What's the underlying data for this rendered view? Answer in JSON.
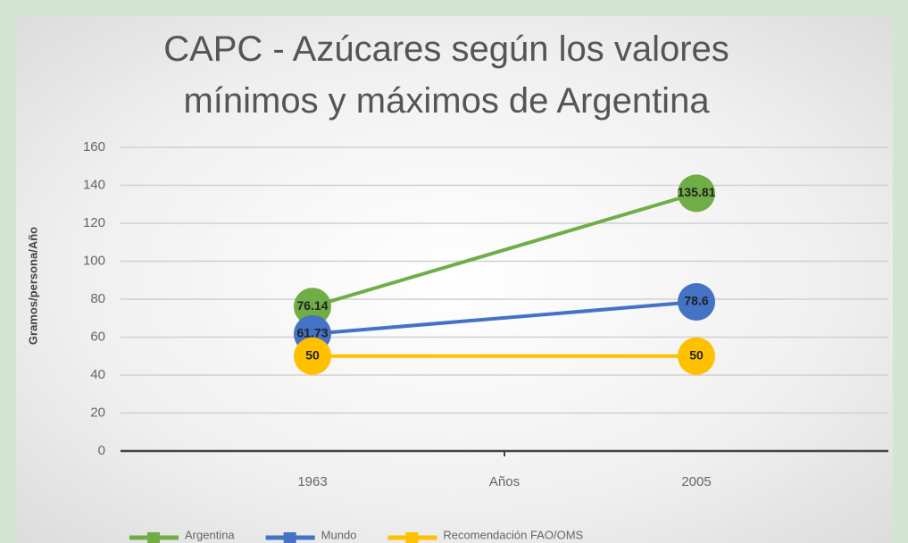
{
  "chart_data": {
    "type": "line",
    "title": "CAPC - Azúcares según los valores mínimos y máximos de Argentina",
    "x_label": "Años",
    "y_label": "Gramos/persona/Año",
    "categories": [
      "1963",
      "2005"
    ],
    "series": [
      {
        "name": "Argentina",
        "color": "#70ad47",
        "values": [
          76.14,
          135.81
        ]
      },
      {
        "name": "Mundo",
        "color": "#4472c4",
        "values": [
          61.73,
          78.6
        ]
      },
      {
        "name": "Recomendación FAO/OMS",
        "color": "#ffc000",
        "values": [
          50,
          50
        ]
      }
    ],
    "ylim": [
      0,
      160
    ],
    "yticks": [
      0,
      20,
      40,
      60,
      80,
      100,
      120,
      140,
      160
    ],
    "grid": true,
    "legend": "bottom"
  }
}
